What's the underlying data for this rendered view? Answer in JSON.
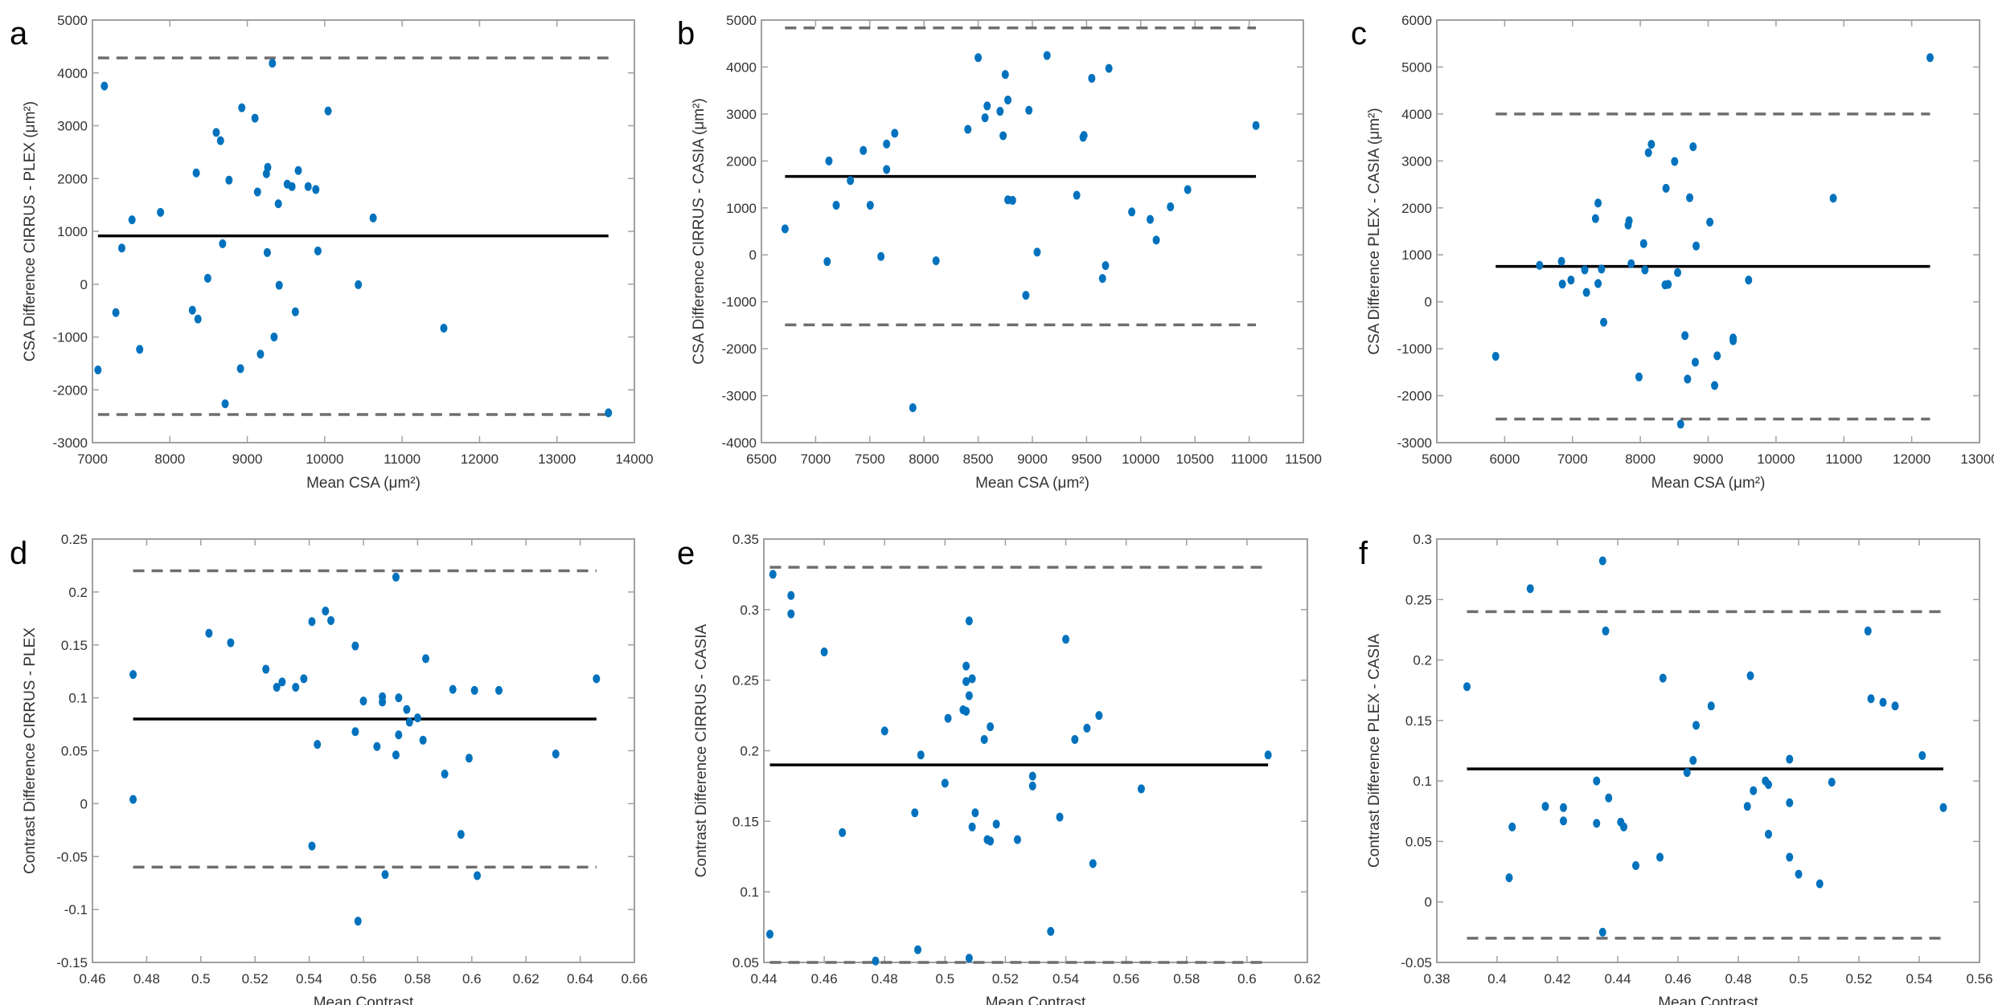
{
  "colors": {
    "points": "#0072BD",
    "mean_line": "#000000",
    "loa_line": "#6e6e6e",
    "frame": "#a0a0a0"
  },
  "chart_data": [
    {
      "type": "scatter",
      "panel": "a",
      "xlabel": "Mean CSA (μm²)",
      "ylabel": "CSA Difference CIRRUS - PLEX (μm²)",
      "xlim": [
        7000,
        14000
      ],
      "ylim": [
        -3000,
        5000
      ],
      "xticks": [
        7000,
        8000,
        9000,
        10000,
        11000,
        12000,
        13000,
        14000
      ],
      "yticks": [
        -3000,
        -2000,
        -1000,
        0,
        1000,
        2000,
        3000,
        4000,
        5000
      ],
      "mean": 914,
      "loa_upper": 4284,
      "loa_lower": -2467,
      "points": [
        [
          7154,
          3751
        ],
        [
          9324,
          4183
        ],
        [
          8929,
          3340
        ],
        [
          9099,
          3142
        ],
        [
          10044,
          3279
        ],
        [
          8599,
          2873
        ],
        [
          8654,
          2716
        ],
        [
          8341,
          2107
        ],
        [
          8764,
          1970
        ],
        [
          9264,
          2213
        ],
        [
          9247,
          2091
        ],
        [
          9659,
          2152
        ],
        [
          9516,
          1893
        ],
        [
          9577,
          1848
        ],
        [
          9786,
          1848
        ],
        [
          9885,
          1792
        ],
        [
          9132,
          1746
        ],
        [
          9401,
          1523
        ],
        [
          7511,
          1218
        ],
        [
          7879,
          1360
        ],
        [
          10626,
          1254
        ],
        [
          7379,
          685
        ],
        [
          8681,
          766
        ],
        [
          9258,
          599
        ],
        [
          9912,
          629
        ],
        [
          8489,
          112
        ],
        [
          9412,
          -20
        ],
        [
          10434,
          -10
        ],
        [
          7302,
          -538
        ],
        [
          8291,
          -492
        ],
        [
          8363,
          -660
        ],
        [
          9621,
          -523
        ],
        [
          11538,
          -832
        ],
        [
          9346,
          -1000
        ],
        [
          7071,
          -1624
        ],
        [
          7610,
          -1234
        ],
        [
          9170,
          -1325
        ],
        [
          8912,
          -1599
        ],
        [
          8714,
          -2264
        ],
        [
          13665,
          -2436
        ]
      ]
    },
    {
      "type": "scatter",
      "panel": "b",
      "xlabel": "Mean CSA (μm²)",
      "ylabel": "CSA Difference CIRRUS - CASIA (μm²)",
      "xlim": [
        6500,
        11500
      ],
      "ylim": [
        -4000,
        5000
      ],
      "xticks": [
        6500,
        7000,
        7500,
        8000,
        8500,
        9000,
        9500,
        10000,
        10500,
        11000,
        11500
      ],
      "yticks": [
        -4000,
        -3000,
        -2000,
        -1000,
        0,
        1000,
        2000,
        3000,
        4000,
        5000
      ],
      "mean": 1669,
      "loa_upper": 4834,
      "loa_lower": -1491,
      "points": [
        [
          6718,
          554
        ],
        [
          7123,
          2000
        ],
        [
          7107,
          -143
        ],
        [
          7190,
          1057
        ],
        [
          7321,
          1583
        ],
        [
          7440,
          2223
        ],
        [
          7504,
          1057
        ],
        [
          7603,
          -34
        ],
        [
          7655,
          2360
        ],
        [
          7655,
          1817
        ],
        [
          7730,
          2589
        ],
        [
          8111,
          -126
        ],
        [
          8405,
          2674
        ],
        [
          8500,
          4200
        ],
        [
          8563,
          2920
        ],
        [
          8583,
          3171
        ],
        [
          8702,
          3057
        ],
        [
          8730,
          2537
        ],
        [
          8750,
          3840
        ],
        [
          8774,
          3297
        ],
        [
          8774,
          1171
        ],
        [
          8817,
          1160
        ],
        [
          8940,
          -863
        ],
        [
          8968,
          3080
        ],
        [
          9044,
          57
        ],
        [
          9135,
          4246
        ],
        [
          9409,
          1269
        ],
        [
          9468,
          2503
        ],
        [
          9476,
          2543
        ],
        [
          9548,
          3760
        ],
        [
          9647,
          -503
        ],
        [
          9675,
          -229
        ],
        [
          9706,
          3971
        ],
        [
          9917,
          914
        ],
        [
          10087,
          754
        ],
        [
          10143,
          314
        ],
        [
          10274,
          1023
        ],
        [
          10433,
          1389
        ],
        [
          11063,
          2754
        ],
        [
          7897,
          -3256
        ]
      ]
    },
    {
      "type": "scatter",
      "panel": "c",
      "xlabel": "Mean CSA (μm²)",
      "ylabel": "CSA Difference PLEX - CASIA (μm²)",
      "xlim": [
        5000,
        13000
      ],
      "ylim": [
        -3000,
        6000
      ],
      "xticks": [
        5000,
        6000,
        7000,
        8000,
        9000,
        10000,
        11000,
        12000,
        13000
      ],
      "yticks": [
        -3000,
        -2000,
        -1000,
        0,
        1000,
        2000,
        3000,
        4000,
        5000,
        6000
      ],
      "mean": 754,
      "loa_upper": 4000,
      "loa_lower": -2497,
      "points": [
        [
          12271,
          5200
        ],
        [
          8163,
          3354
        ],
        [
          8119,
          3177
        ],
        [
          8778,
          3303
        ],
        [
          8506,
          2989
        ],
        [
          8379,
          2417
        ],
        [
          8728,
          2217
        ],
        [
          10844,
          2206
        ],
        [
          7377,
          2103
        ],
        [
          7339,
          1771
        ],
        [
          7834,
          1726
        ],
        [
          7821,
          1634
        ],
        [
          9025,
          1697
        ],
        [
          8049,
          1240
        ],
        [
          8823,
          1189
        ],
        [
          6515,
          777
        ],
        [
          6838,
          863
        ],
        [
          7865,
          811
        ],
        [
          7181,
          680
        ],
        [
          7428,
          697
        ],
        [
          8068,
          680
        ],
        [
          8550,
          623
        ],
        [
          6851,
          377
        ],
        [
          6978,
          463
        ],
        [
          7377,
          389
        ],
        [
          7206,
          200
        ],
        [
          8366,
          360
        ],
        [
          8410,
          371
        ],
        [
          9596,
          463
        ],
        [
          7460,
          -435
        ],
        [
          5868,
          -1160
        ],
        [
          8658,
          -720
        ],
        [
          9368,
          -771
        ],
        [
          9368,
          -829
        ],
        [
          9133,
          -1149
        ],
        [
          8810,
          -1286
        ],
        [
          7980,
          -1600
        ],
        [
          8696,
          -1646
        ],
        [
          9095,
          -1783
        ],
        [
          8594,
          -2606
        ]
      ]
    },
    {
      "type": "scatter",
      "panel": "d",
      "xlabel": "Mean Contrast",
      "ylabel": "Contrast Difference CIRRUS - PLEX",
      "xlim": [
        0.46,
        0.66
      ],
      "ylim": [
        -0.15,
        0.25
      ],
      "xticks": [
        0.46,
        0.48,
        0.5,
        0.52,
        0.54,
        0.56,
        0.58,
        0.6,
        0.62,
        0.64,
        0.66
      ],
      "yticks": [
        -0.15,
        -0.1,
        -0.05,
        0,
        0.05,
        0.1,
        0.15,
        0.2,
        0.25
      ],
      "mean": 0.08,
      "loa_upper": 0.22,
      "loa_lower": -0.06,
      "points": [
        [
          0.475,
          0.122
        ],
        [
          0.503,
          0.161
        ],
        [
          0.511,
          0.152
        ],
        [
          0.524,
          0.127
        ],
        [
          0.528,
          0.11
        ],
        [
          0.53,
          0.115
        ],
        [
          0.535,
          0.11
        ],
        [
          0.538,
          0.118
        ],
        [
          0.541,
          0.172
        ],
        [
          0.543,
          0.056
        ],
        [
          0.546,
          0.182
        ],
        [
          0.548,
          0.173
        ],
        [
          0.557,
          0.068
        ],
        [
          0.557,
          0.149
        ],
        [
          0.56,
          0.097
        ],
        [
          0.565,
          0.054
        ],
        [
          0.567,
          0.096
        ],
        [
          0.567,
          0.101
        ],
        [
          0.572,
          0.046
        ],
        [
          0.572,
          0.214
        ],
        [
          0.573,
          0.1
        ],
        [
          0.573,
          0.065
        ],
        [
          0.576,
          0.089
        ],
        [
          0.577,
          0.077
        ],
        [
          0.58,
          0.081
        ],
        [
          0.582,
          0.06
        ],
        [
          0.583,
          0.137
        ],
        [
          0.593,
          0.108
        ],
        [
          0.601,
          0.107
        ],
        [
          0.61,
          0.107
        ],
        [
          0.646,
          0.118
        ],
        [
          0.59,
          0.028
        ],
        [
          0.599,
          0.043
        ],
        [
          0.631,
          0.047
        ],
        [
          0.475,
          0.004
        ],
        [
          0.541,
          -0.04
        ],
        [
          0.596,
          -0.029
        ],
        [
          0.568,
          -0.067
        ],
        [
          0.602,
          -0.068
        ],
        [
          0.558,
          -0.111
        ]
      ]
    },
    {
      "type": "scatter",
      "panel": "e",
      "xlabel": "Mean Contrast",
      "ylabel": "Contrast Difference CIRRUS - CASIA",
      "xlim": [
        0.44,
        0.62
      ],
      "ylim": [
        0.05,
        0.35
      ],
      "xticks": [
        0.44,
        0.46,
        0.48,
        0.5,
        0.52,
        0.54,
        0.56,
        0.58,
        0.6,
        0.62
      ],
      "yticks": [
        0.05,
        0.1,
        0.15,
        0.2,
        0.25,
        0.3,
        0.35
      ],
      "mean": 0.19,
      "loa_upper": 0.33,
      "loa_lower": 0.05,
      "points": [
        [
          0.443,
          0.325
        ],
        [
          0.449,
          0.31
        ],
        [
          0.449,
          0.297
        ],
        [
          0.46,
          0.27
        ],
        [
          0.48,
          0.214
        ],
        [
          0.492,
          0.197
        ],
        [
          0.501,
          0.223
        ],
        [
          0.506,
          0.229
        ],
        [
          0.507,
          0.228
        ],
        [
          0.507,
          0.26
        ],
        [
          0.507,
          0.249
        ],
        [
          0.509,
          0.251
        ],
        [
          0.508,
          0.239
        ],
        [
          0.508,
          0.292
        ],
        [
          0.513,
          0.208
        ],
        [
          0.515,
          0.217
        ],
        [
          0.54,
          0.279
        ],
        [
          0.543,
          0.208
        ],
        [
          0.547,
          0.216
        ],
        [
          0.551,
          0.225
        ],
        [
          0.607,
          0.197
        ],
        [
          0.5,
          0.177
        ],
        [
          0.49,
          0.156
        ],
        [
          0.466,
          0.142
        ],
        [
          0.51,
          0.156
        ],
        [
          0.509,
          0.146
        ],
        [
          0.517,
          0.148
        ],
        [
          0.514,
          0.137
        ],
        [
          0.515,
          0.136
        ],
        [
          0.524,
          0.137
        ],
        [
          0.529,
          0.175
        ],
        [
          0.529,
          0.182
        ],
        [
          0.538,
          0.153
        ],
        [
          0.549,
          0.12
        ],
        [
          0.565,
          0.173
        ],
        [
          0.442,
          0.07
        ],
        [
          0.491,
          0.059
        ],
        [
          0.477,
          0.051
        ],
        [
          0.508,
          0.053
        ],
        [
          0.535,
          0.072
        ]
      ]
    },
    {
      "type": "scatter",
      "panel": "f",
      "xlabel": "Mean Contrast",
      "ylabel": "Contrast Difference PLEX - CASIA",
      "xlim": [
        0.38,
        0.56
      ],
      "ylim": [
        -0.05,
        0.3
      ],
      "xticks": [
        0.38,
        0.4,
        0.42,
        0.44,
        0.46,
        0.48,
        0.5,
        0.52,
        0.54,
        0.56
      ],
      "yticks": [
        -0.05,
        0,
        0.05,
        0.1,
        0.15,
        0.2,
        0.25,
        0.3
      ],
      "mean": 0.11,
      "loa_upper": 0.24,
      "loa_lower": -0.03,
      "points": [
        [
          0.39,
          0.178
        ],
        [
          0.411,
          0.259
        ],
        [
          0.435,
          0.282
        ],
        [
          0.436,
          0.224
        ],
        [
          0.455,
          0.185
        ],
        [
          0.466,
          0.146
        ],
        [
          0.471,
          0.162
        ],
        [
          0.484,
          0.187
        ],
        [
          0.523,
          0.224
        ],
        [
          0.524,
          0.168
        ],
        [
          0.528,
          0.165
        ],
        [
          0.532,
          0.162
        ],
        [
          0.465,
          0.117
        ],
        [
          0.463,
          0.107
        ],
        [
          0.497,
          0.118
        ],
        [
          0.541,
          0.121
        ],
        [
          0.511,
          0.099
        ],
        [
          0.433,
          0.1
        ],
        [
          0.489,
          0.1
        ],
        [
          0.49,
          0.097
        ],
        [
          0.485,
          0.092
        ],
        [
          0.437,
          0.086
        ],
        [
          0.416,
          0.079
        ],
        [
          0.422,
          0.078
        ],
        [
          0.422,
          0.067
        ],
        [
          0.433,
          0.065
        ],
        [
          0.441,
          0.066
        ],
        [
          0.442,
          0.062
        ],
        [
          0.405,
          0.062
        ],
        [
          0.483,
          0.079
        ],
        [
          0.497,
          0.082
        ],
        [
          0.548,
          0.078
        ],
        [
          0.49,
          0.056
        ],
        [
          0.454,
          0.037
        ],
        [
          0.446,
          0.03
        ],
        [
          0.497,
          0.037
        ],
        [
          0.5,
          0.023
        ],
        [
          0.507,
          0.015
        ],
        [
          0.404,
          0.02
        ],
        [
          0.435,
          -0.025
        ]
      ]
    }
  ]
}
